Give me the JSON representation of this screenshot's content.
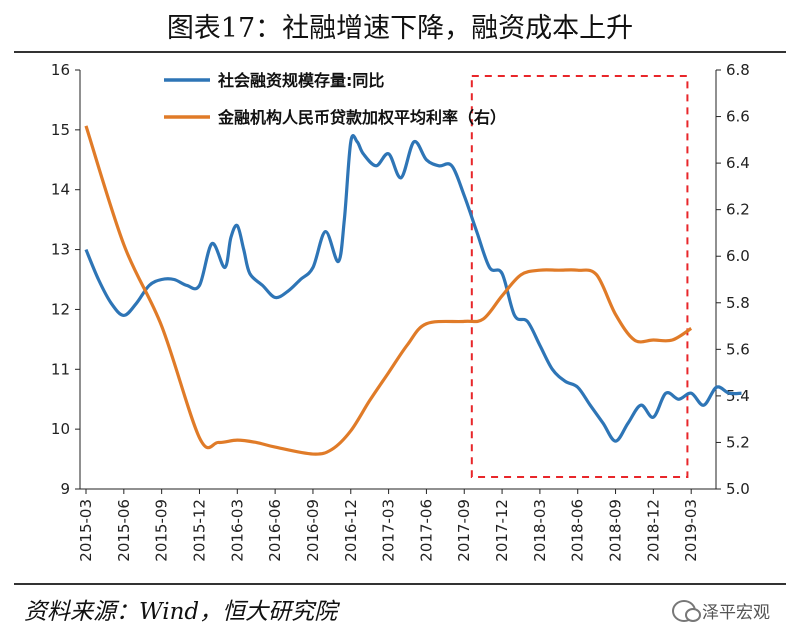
{
  "header": {
    "title": "图表17：社融增速下降，融资成本上升"
  },
  "footer": {
    "source": "资料来源：Wind，恒大研究院",
    "brand": "泽平宏观"
  },
  "chart_data": {
    "type": "line",
    "title": "图表17：社融增速下降，融资成本上升",
    "x_labels": [
      "2015-03",
      "2015-06",
      "2015-09",
      "2015-12",
      "2016-03",
      "2016-06",
      "2016-09",
      "2016-12",
      "2017-03",
      "2017-06",
      "2017-09",
      "2017-12",
      "2018-03",
      "2018-06",
      "2018-09",
      "2018-12",
      "2019-03"
    ],
    "left_axis": {
      "ylim": [
        9,
        16
      ],
      "ticks": [
        9,
        10,
        11,
        12,
        13,
        14,
        15,
        16
      ]
    },
    "right_axis": {
      "ylim": [
        5.0,
        6.8
      ],
      "ticks": [
        "5.0",
        "5.2",
        "5.4",
        "5.6",
        "5.8",
        "6.0",
        "6.2",
        "6.4",
        "6.6",
        "6.8"
      ]
    },
    "series": [
      {
        "name": "社会融资规模存量:同比",
        "axis": "left",
        "color": "#2E75B6",
        "x": [
          0,
          0.33,
          0.67,
          1,
          1.33,
          1.67,
          2,
          2.33,
          2.67,
          3,
          3.33,
          3.67,
          3.83,
          4,
          4.17,
          4.33,
          4.67,
          5,
          5.33,
          5.67,
          6,
          6.33,
          6.67,
          6.83,
          7,
          7.17,
          7.33,
          7.67,
          8,
          8.33,
          8.67,
          9,
          9.33,
          9.67,
          10,
          10.33,
          10.67,
          11,
          11.33,
          11.67,
          12,
          12.33,
          12.67,
          13,
          13.33,
          13.67,
          14,
          14.33,
          14.67,
          15,
          15.33,
          15.67,
          16,
          16.33,
          16.67,
          17,
          17.33
        ],
        "values": [
          13.0,
          12.5,
          12.1,
          11.9,
          12.1,
          12.4,
          12.5,
          12.5,
          12.4,
          12.4,
          13.1,
          12.7,
          13.2,
          13.4,
          13.0,
          12.6,
          12.4,
          12.2,
          12.3,
          12.5,
          12.7,
          13.3,
          12.8,
          13.5,
          14.8,
          14.8,
          14.6,
          14.4,
          14.6,
          14.2,
          14.8,
          14.5,
          14.4,
          14.4,
          13.9,
          13.3,
          12.7,
          12.6,
          11.9,
          11.8,
          11.4,
          11.0,
          10.8,
          10.7,
          10.4,
          10.1,
          9.8,
          10.1,
          10.4,
          10.2,
          10.6,
          10.5,
          10.6,
          10.4,
          10.7,
          10.6,
          10.6
        ],
        "values_count_note": ""
      },
      {
        "name": "金融机构人民币贷款加权平均利率（右）",
        "axis": "right",
        "color": "#E07B28",
        "x": [
          0,
          1,
          2,
          3,
          3.5,
          4,
          4.5,
          5,
          6,
          6.5,
          7,
          7.5,
          8,
          8.5,
          9,
          10,
          10.5,
          11,
          11.5,
          12,
          12.5,
          13,
          13.5,
          14,
          14.5,
          15,
          15.5,
          16
        ],
        "values": [
          6.56,
          6.05,
          5.7,
          5.22,
          5.2,
          5.21,
          5.2,
          5.18,
          5.15,
          5.17,
          5.25,
          5.38,
          5.5,
          5.62,
          5.71,
          5.72,
          5.73,
          5.83,
          5.92,
          5.94,
          5.94,
          5.94,
          5.92,
          5.75,
          5.64,
          5.64,
          5.64,
          5.69
        ]
      }
    ],
    "annotations": [
      {
        "type": "dashed-rectangle",
        "color": "#E8262A",
        "x_range": [
          10.2,
          15.9
        ],
        "left_y_range": [
          9.2,
          15.9
        ]
      }
    ],
    "legend_position": "top-left"
  }
}
